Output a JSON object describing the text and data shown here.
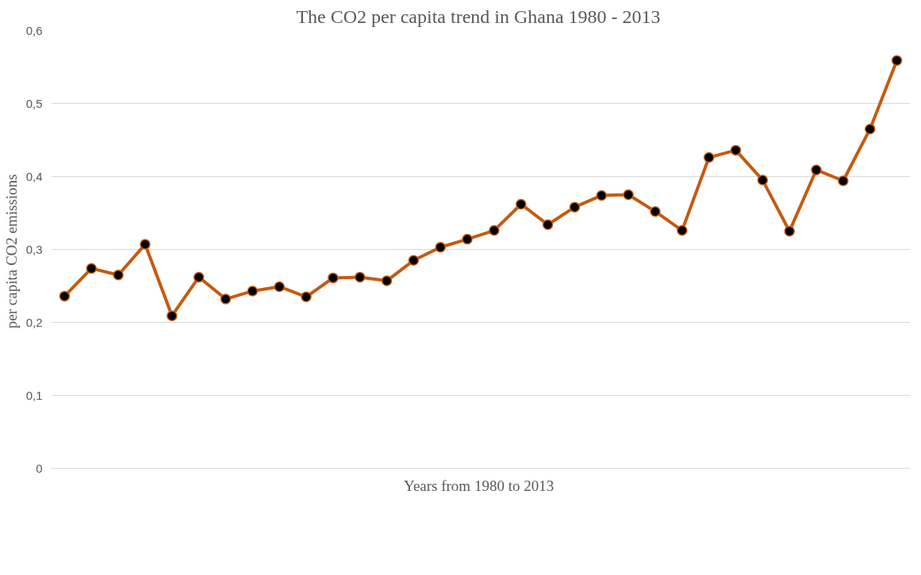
{
  "chart_data": {
    "type": "line",
    "title": "The CO2 per capita trend in Ghana 1980  - 2013",
    "xlabel": "Years from 1980  to 2013",
    "ylabel": "per capita  CO2 emissions",
    "categories": [
      null,
      null,
      null,
      null,
      null,
      null,
      null,
      null,
      null,
      null,
      null,
      null,
      null,
      null,
      null,
      null,
      null,
      null,
      null,
      null,
      null,
      null,
      null,
      null,
      null,
      null,
      null,
      null,
      null,
      null,
      null,
      null
    ],
    "series": [
      {
        "color": "#c55a11",
        "values": [
          0.236,
          0.274,
          0.265,
          0.307,
          0.209,
          0.262,
          0.232,
          0.243,
          0.249,
          0.235,
          0.261,
          0.262,
          0.257,
          0.285,
          0.303,
          0.314,
          0.326,
          0.362,
          0.334,
          0.358,
          0.374,
          0.375,
          0.352,
          0.326,
          0.426,
          0.436,
          0.395,
          0.325,
          0.409,
          0.394,
          0.465,
          0.559
        ]
      }
    ],
    "ylim": [
      0,
      0.6
    ],
    "yticks": [
      0,
      {
        "value": 0.1,
        "label": "0,1"
      },
      {
        "value": 0.2,
        "label": "0,2"
      },
      {
        "value": 0.3,
        "label": "0,3"
      },
      {
        "value": 0.4,
        "label": "0,4"
      },
      {
        "value": 0.5,
        "label": "0,5"
      },
      {
        "value": 0.6,
        "label": "0,6"
      }
    ],
    "grid": "y",
    "marker": "circle",
    "line_style": "solid",
    "tick_labels": "y"
  }
}
